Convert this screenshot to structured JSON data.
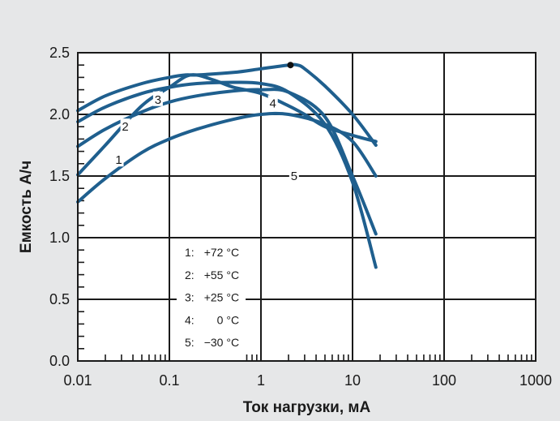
{
  "chart_data": {
    "type": "line",
    "title": "",
    "xlabel": "Ток нагрузки, мА",
    "ylabel": "Емкость А/ч",
    "x_scale": "log",
    "xlim": [
      0.01,
      1000
    ],
    "ylim": [
      0.0,
      2.5
    ],
    "x_ticks": [
      0.01,
      0.1,
      1,
      10,
      100,
      1000
    ],
    "x_tick_labels": [
      "0.01",
      "0.1",
      "1",
      "10",
      "100",
      "1000"
    ],
    "y_ticks": [
      0.0,
      0.5,
      1.0,
      1.5,
      2.0,
      2.5
    ],
    "y_tick_labels": [
      "0.0",
      "0.5",
      "1.0",
      "1.5",
      "2.0",
      "2.5"
    ],
    "grid": true,
    "line_color": "#1f5f8e",
    "series": [
      {
        "name": "1",
        "label_at": [
          0.028,
          1.63
        ],
        "x": [
          0.01,
          0.02,
          0.05,
          0.1,
          0.2,
          0.5,
          1,
          2,
          5,
          10,
          18
        ],
        "y": [
          1.29,
          1.48,
          1.69,
          1.8,
          1.88,
          1.96,
          2.0,
          2.0,
          1.92,
          1.78,
          1.5
        ]
      },
      {
        "name": "2",
        "label_at": [
          0.033,
          1.9
        ],
        "x": [
          0.01,
          0.02,
          0.05,
          0.1,
          0.2,
          0.5,
          1,
          2,
          5,
          10,
          18
        ],
        "y": [
          1.74,
          1.88,
          2.02,
          2.1,
          2.15,
          2.19,
          2.2,
          2.18,
          1.98,
          1.5,
          1.03
        ]
      },
      {
        "name": "3",
        "label_at": [
          0.075,
          2.12
        ],
        "x": [
          0.01,
          0.02,
          0.05,
          0.1,
          0.2,
          0.5,
          1,
          2,
          5,
          10,
          18
        ],
        "y": [
          1.94,
          2.06,
          2.17,
          2.22,
          2.25,
          2.26,
          2.25,
          2.18,
          1.92,
          1.45,
          0.76
        ]
      },
      {
        "name": "4",
        "label_at": [
          1.35,
          2.09
        ],
        "x": [
          0.01,
          0.02,
          0.05,
          0.1,
          0.15,
          0.2,
          0.5,
          1,
          2,
          2.5,
          3,
          5,
          10,
          18
        ],
        "y": [
          2.03,
          2.15,
          2.25,
          2.3,
          2.32,
          2.32,
          2.34,
          2.37,
          2.4,
          2.4,
          2.37,
          2.23,
          2.0,
          1.75
        ]
      },
      {
        "name": "5",
        "label_at": [
          2.3,
          1.5
        ],
        "x": [
          0.01,
          0.02,
          0.05,
          0.1,
          0.17,
          0.3,
          0.5,
          1,
          2,
          3,
          5,
          10,
          18
        ],
        "y": [
          1.51,
          1.75,
          2.07,
          2.22,
          2.32,
          2.28,
          2.22,
          2.17,
          2.07,
          2.0,
          1.9,
          1.83,
          1.78
        ]
      }
    ],
    "marker": {
      "x": 2.1,
      "y": 2.4
    },
    "legend_box": [
      0.12,
      0.68,
      0.0,
      0.98
    ],
    "legend": [
      {
        "key": "1:",
        "value": "+72 °C"
      },
      {
        "key": "2:",
        "value": "+55 °C"
      },
      {
        "key": "3:",
        "value": "+25 °C"
      },
      {
        "key": "4:",
        "value": "0 °C"
      },
      {
        "key": "5:",
        "value": "−30 °C"
      }
    ]
  }
}
